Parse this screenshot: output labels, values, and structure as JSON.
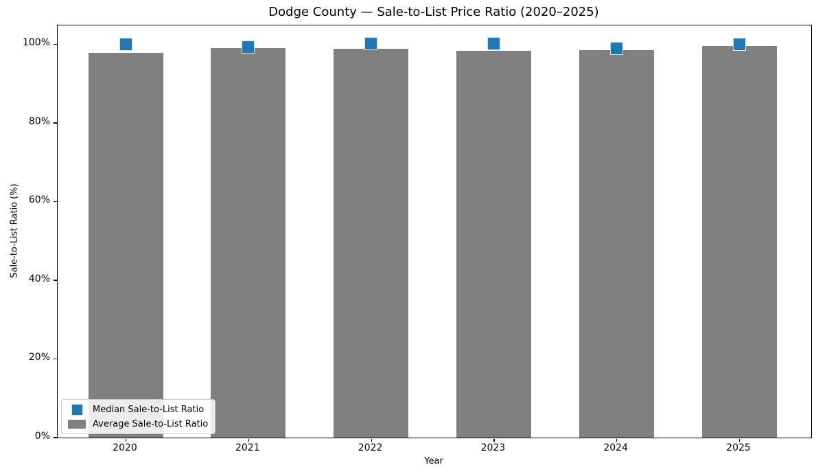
{
  "chart_data": {
    "type": "bar",
    "title": "Dodge County — Sale-to-List Price Ratio (2020–2025)",
    "xlabel": "Year",
    "ylabel": "Sale-to-List Ratio (%)",
    "categories": [
      "2020",
      "2021",
      "2022",
      "2023",
      "2024",
      "2025"
    ],
    "series": [
      {
        "name": "Median Sale-to-List Ratio",
        "render": "square-marker",
        "color": "#1f77b4",
        "marker_edge_color": "#d3e5f3",
        "values": [
          100.0,
          99.3,
          100.1,
          100.1,
          99.0,
          100.0
        ]
      },
      {
        "name": "Average Sale-to-List Ratio",
        "render": "bar",
        "color": "#808080",
        "values": [
          97.8,
          99.1,
          98.8,
          98.3,
          98.5,
          99.6
        ]
      }
    ],
    "ylim": [
      0,
      104.8
    ],
    "yticks": [
      {
        "value": 0,
        "label": "0%"
      },
      {
        "value": 20,
        "label": "20%"
      },
      {
        "value": 40,
        "label": "40%"
      },
      {
        "value": 60,
        "label": "60%"
      },
      {
        "value": 80,
        "label": "80%"
      },
      {
        "value": 100,
        "label": "100%"
      }
    ],
    "grid": false,
    "legend_position": "lower left"
  }
}
